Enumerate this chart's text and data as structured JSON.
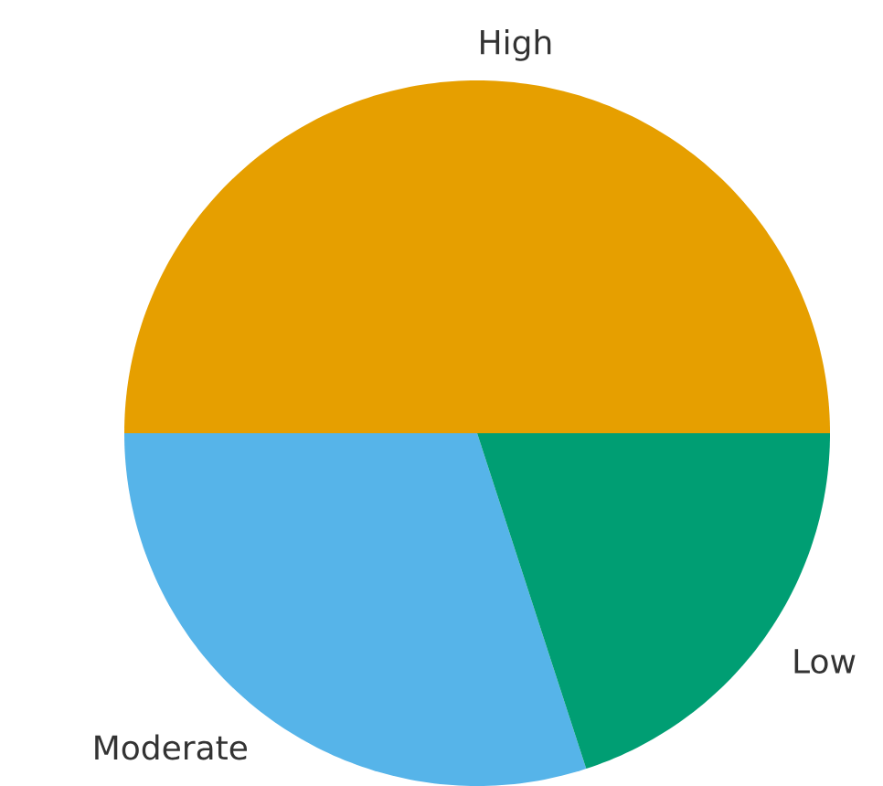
{
  "chart_data": {
    "type": "pie",
    "categories": [
      "High",
      "Moderate",
      "Low"
    ],
    "values": [
      50,
      30,
      20
    ],
    "colors": [
      "#e69f00",
      "#56b4e9",
      "#009e73"
    ]
  }
}
